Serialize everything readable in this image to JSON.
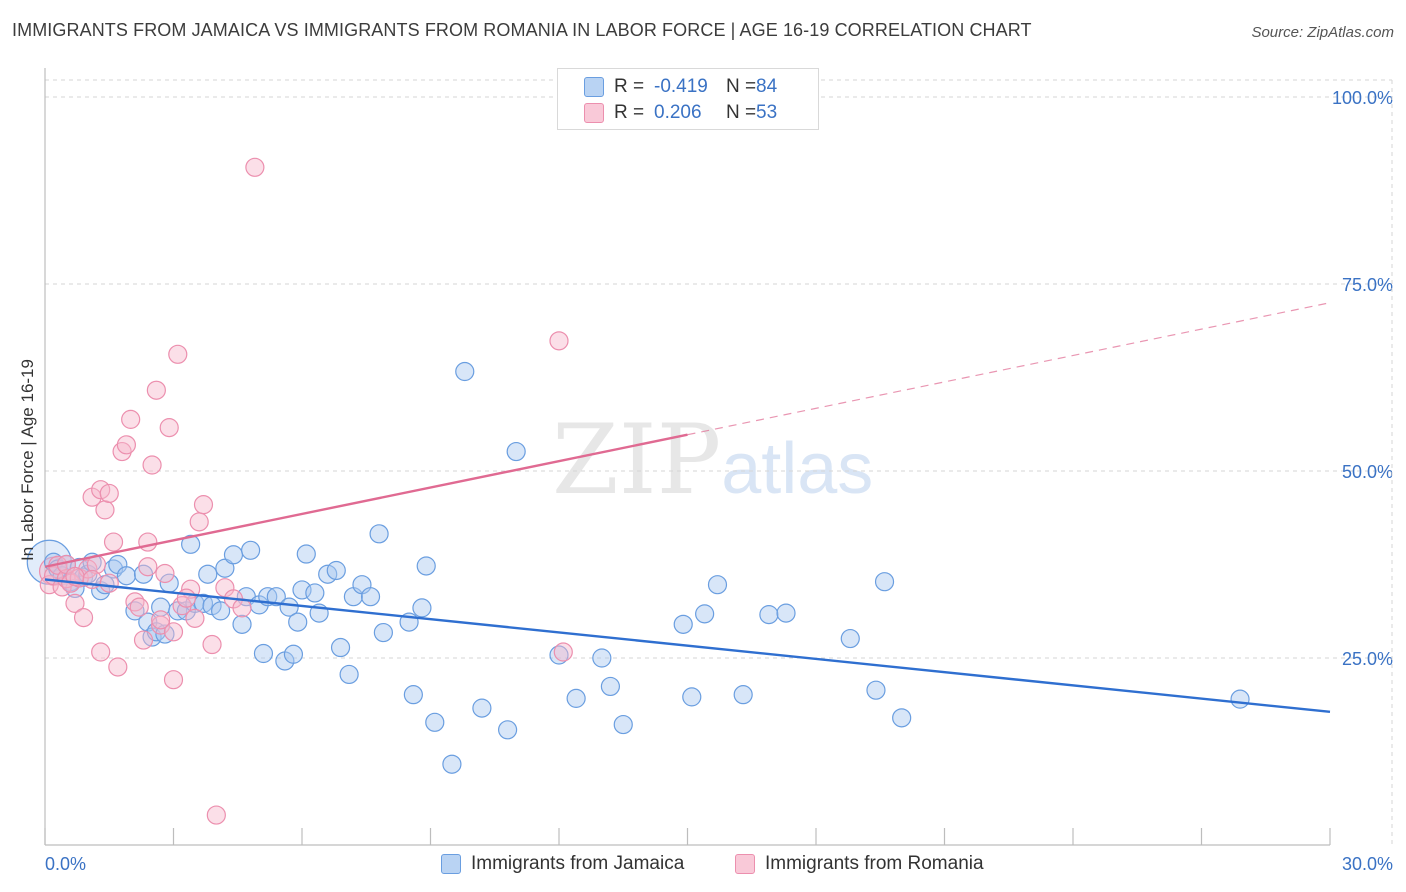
{
  "title": "IMMIGRANTS FROM JAMAICA VS IMMIGRANTS FROM ROMANIA IN LABOR FORCE | AGE 16-19 CORRELATION CHART",
  "source": "Source: ZipAtlas.com",
  "watermark": {
    "zip": "ZIP",
    "atlas": "atlas"
  },
  "stats": [
    {
      "r_label": "R =",
      "r_value": "-0.419",
      "n_label": "N =",
      "n_value": "84"
    },
    {
      "r_label": "R =",
      "r_value": "0.206",
      "n_label": "N =",
      "n_value": "53"
    }
  ],
  "colors": {
    "jamaica_fill": "#a9c8f0",
    "jamaica_stroke": "#6a9ee0",
    "jamaica_line": "#2f6fd0",
    "romania_fill": "#f6b8cc",
    "romania_stroke": "#ec8fae",
    "romania_line": "#e06a92",
    "tick_text": "#3a72c4",
    "grid": "#d6d6d6"
  },
  "chart_data": {
    "type": "scatter",
    "xlabel": "",
    "ylabel": "In Labor Force | Age 16-19",
    "xlim": [
      0,
      30
    ],
    "ylim": [
      0,
      100
    ],
    "x_ticks": [
      "0.0%",
      "30.0%"
    ],
    "y_ticks": [
      {
        "value": 100,
        "label": "100.0%"
      },
      {
        "value": 75,
        "label": "75.0%"
      },
      {
        "value": 50,
        "label": "50.0%"
      },
      {
        "value": 25,
        "label": "25.0%"
      }
    ],
    "legend_position": "bottom-center",
    "series": [
      {
        "name": "Immigrants from Jamaica",
        "points": [
          [
            0.2,
            37.8
          ],
          [
            0.3,
            36.9
          ],
          [
            0.4,
            36.0
          ],
          [
            0.5,
            37.5
          ],
          [
            0.6,
            35.2
          ],
          [
            0.7,
            34.3
          ],
          [
            0.8,
            37.1
          ],
          [
            0.9,
            35.8
          ],
          [
            1.0,
            36.2
          ],
          [
            1.1,
            37.8
          ],
          [
            1.3,
            34.0
          ],
          [
            1.4,
            34.8
          ],
          [
            1.6,
            36.9
          ],
          [
            1.7,
            37.5
          ],
          [
            1.9,
            36.0
          ],
          [
            2.1,
            31.3
          ],
          [
            2.3,
            36.2
          ],
          [
            2.4,
            29.8
          ],
          [
            2.5,
            27.8
          ],
          [
            2.6,
            28.5
          ],
          [
            2.7,
            31.8
          ],
          [
            2.8,
            28.2
          ],
          [
            2.9,
            35.0
          ],
          [
            3.1,
            31.3
          ],
          [
            3.3,
            31.3
          ],
          [
            3.4,
            40.2
          ],
          [
            3.5,
            32.3
          ],
          [
            3.7,
            32.3
          ],
          [
            3.8,
            36.2
          ],
          [
            3.9,
            32.0
          ],
          [
            4.1,
            31.3
          ],
          [
            4.2,
            37.0
          ],
          [
            4.4,
            38.8
          ],
          [
            4.6,
            29.5
          ],
          [
            4.7,
            33.2
          ],
          [
            4.8,
            39.4
          ],
          [
            5.0,
            32.1
          ],
          [
            5.1,
            25.6
          ],
          [
            5.2,
            33.2
          ],
          [
            5.4,
            33.2
          ],
          [
            5.6,
            24.6
          ],
          [
            5.7,
            31.8
          ],
          [
            5.8,
            25.5
          ],
          [
            5.9,
            29.8
          ],
          [
            6.0,
            34.1
          ],
          [
            6.1,
            38.9
          ],
          [
            6.3,
            33.7
          ],
          [
            6.4,
            31.0
          ],
          [
            6.6,
            36.2
          ],
          [
            6.8,
            36.7
          ],
          [
            6.9,
            26.4
          ],
          [
            7.1,
            22.8
          ],
          [
            7.2,
            33.2
          ],
          [
            7.4,
            34.8
          ],
          [
            7.6,
            33.2
          ],
          [
            7.8,
            41.6
          ],
          [
            7.9,
            28.4
          ],
          [
            8.5,
            29.8
          ],
          [
            8.6,
            20.1
          ],
          [
            8.8,
            31.7
          ],
          [
            8.9,
            37.3
          ],
          [
            9.1,
            16.4
          ],
          [
            9.5,
            10.8
          ],
          [
            9.8,
            63.3
          ],
          [
            10.2,
            18.3
          ],
          [
            10.8,
            15.4
          ],
          [
            11.0,
            52.6
          ],
          [
            12.0,
            25.4
          ],
          [
            12.4,
            19.6
          ],
          [
            13.0,
            25.0
          ],
          [
            13.2,
            21.2
          ],
          [
            13.5,
            16.1
          ],
          [
            14.9,
            29.5
          ],
          [
            15.1,
            19.8
          ],
          [
            15.4,
            30.9
          ],
          [
            15.7,
            34.8
          ],
          [
            16.3,
            20.1
          ],
          [
            16.9,
            30.8
          ],
          [
            17.3,
            31.0
          ],
          [
            18.8,
            27.6
          ],
          [
            19.4,
            20.7
          ],
          [
            19.6,
            35.2
          ],
          [
            20.0,
            17.0
          ],
          [
            27.9,
            19.5
          ]
        ]
      },
      {
        "name": "Immigrants from Romania",
        "points": [
          [
            0.1,
            34.8
          ],
          [
            0.2,
            36.0
          ],
          [
            0.3,
            37.4
          ],
          [
            0.4,
            34.5
          ],
          [
            0.5,
            35.6
          ],
          [
            0.6,
            35.0
          ],
          [
            0.7,
            32.3
          ],
          [
            0.8,
            35.7
          ],
          [
            0.9,
            30.4
          ],
          [
            1.0,
            36.9
          ],
          [
            1.1,
            46.5
          ],
          [
            1.2,
            37.5
          ],
          [
            1.3,
            25.8
          ],
          [
            1.3,
            47.5
          ],
          [
            1.4,
            44.8
          ],
          [
            1.5,
            47.0
          ],
          [
            1.6,
            40.5
          ],
          [
            1.7,
            23.8
          ],
          [
            1.8,
            52.6
          ],
          [
            1.9,
            53.5
          ],
          [
            2.0,
            56.9
          ],
          [
            2.1,
            32.5
          ],
          [
            2.2,
            31.8
          ],
          [
            2.4,
            40.5
          ],
          [
            2.4,
            37.2
          ],
          [
            2.5,
            50.8
          ],
          [
            2.6,
            60.8
          ],
          [
            2.7,
            29.4
          ],
          [
            2.8,
            36.3
          ],
          [
            2.9,
            55.8
          ],
          [
            3.0,
            28.5
          ],
          [
            3.0,
            22.1
          ],
          [
            3.1,
            65.6
          ],
          [
            3.2,
            32.0
          ],
          [
            3.4,
            34.2
          ],
          [
            3.5,
            30.3
          ],
          [
            3.6,
            43.2
          ],
          [
            3.7,
            45.5
          ],
          [
            3.9,
            26.8
          ],
          [
            4.0,
            4.0
          ],
          [
            4.2,
            34.4
          ],
          [
            4.4,
            32.9
          ],
          [
            4.6,
            31.7
          ],
          [
            4.9,
            90.6
          ],
          [
            12.0,
            67.4
          ],
          [
            12.1,
            25.8
          ],
          [
            0.5,
            37.5
          ],
          [
            0.7,
            35.9
          ],
          [
            1.1,
            35.5
          ],
          [
            1.5,
            35.0
          ],
          [
            2.3,
            27.4
          ],
          [
            2.7,
            30.1
          ],
          [
            3.3,
            33.0
          ]
        ]
      }
    ],
    "trend_lines": [
      {
        "series": "Immigrants from Jamaica",
        "x": [
          0,
          30
        ],
        "y": [
          35.5,
          17.8
        ],
        "dashed_from": null
      },
      {
        "series": "Immigrants from Romania",
        "x": [
          0,
          30
        ],
        "y": [
          37.2,
          72.5
        ],
        "solid_until": 15
      }
    ]
  }
}
